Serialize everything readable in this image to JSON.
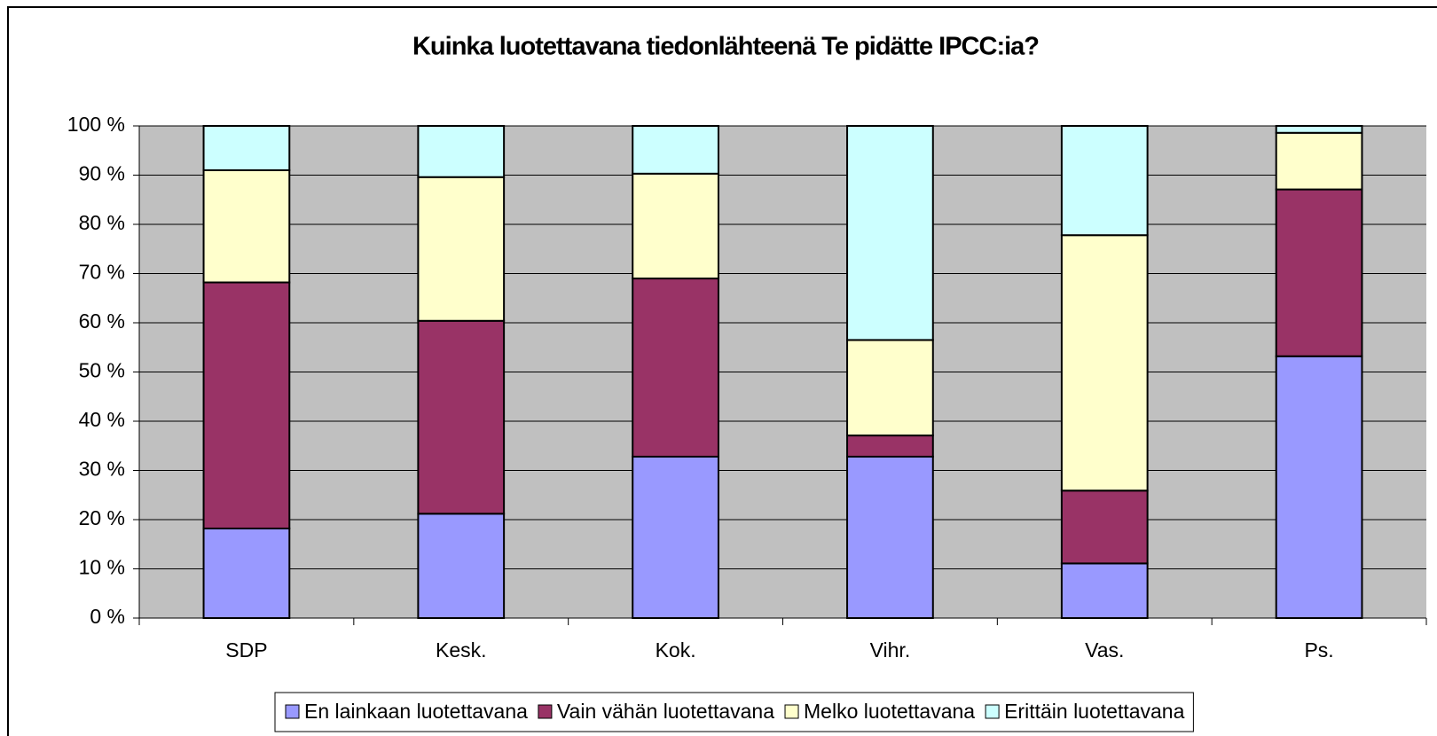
{
  "chart_data": {
    "type": "stacked_bar",
    "title": "Kuinka luotettavana tiedonlähteenä Te pidätte IPCC:ia?",
    "categories": [
      "SDP",
      "Kesk.",
      "Kok.",
      "Vihr.",
      "Vas.",
      "Ps."
    ],
    "series": [
      {
        "name": "En lainkaan luotettavana",
        "color": "#9999ff",
        "values": [
          18.2,
          21.2,
          32.8,
          32.8,
          11.1,
          53.2
        ]
      },
      {
        "name": "Vain vähän luotettavana",
        "color": "#993366",
        "values": [
          50.0,
          39.2,
          36.2,
          4.3,
          14.8,
          33.9
        ]
      },
      {
        "name": "Melko luotettavana",
        "color": "#ffffcc",
        "values": [
          22.8,
          29.2,
          21.3,
          19.4,
          51.9,
          11.5
        ]
      },
      {
        "name": "Erittäin luotettavana",
        "color": "#ccffff",
        "values": [
          9.0,
          10.4,
          9.7,
          43.5,
          22.2,
          1.4
        ]
      }
    ],
    "ylim": [
      0,
      100
    ],
    "yticks": [
      {
        "value": 0,
        "label": "0 %"
      },
      {
        "value": 10,
        "label": "10 %"
      },
      {
        "value": 20,
        "label": "20 %"
      },
      {
        "value": 30,
        "label": "30 %"
      },
      {
        "value": 40,
        "label": "40 %"
      },
      {
        "value": 50,
        "label": "50 %"
      },
      {
        "value": 60,
        "label": "60 %"
      },
      {
        "value": 70,
        "label": "70 %"
      },
      {
        "value": 80,
        "label": "80 %"
      },
      {
        "value": 90,
        "label": "90 %"
      },
      {
        "value": 100,
        "label": "100 %"
      }
    ],
    "grid": true,
    "legend": "bottom"
  }
}
